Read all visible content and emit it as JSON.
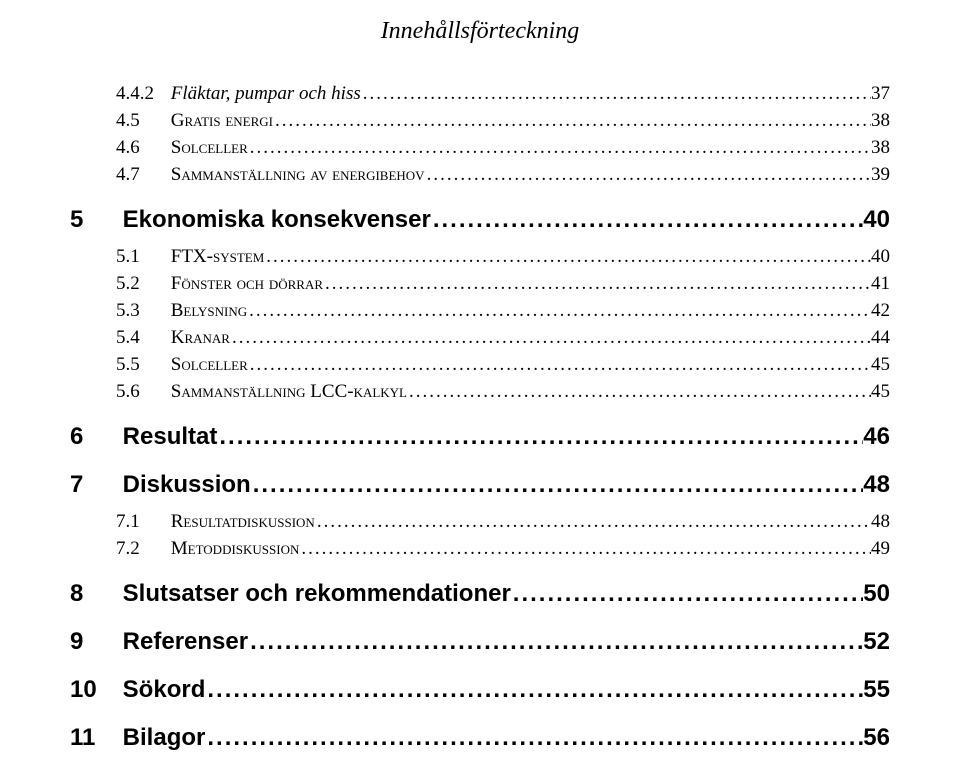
{
  "header": {
    "title": "Innehållsförteckning"
  },
  "leader_char": ".",
  "colors": {
    "background": "#ffffff",
    "text": "#000000"
  },
  "typography": {
    "header": {
      "family": "Georgia",
      "style": "italic",
      "size_pt": 18
    },
    "chapter": {
      "family": "Arial",
      "weight": "bold",
      "size_pt": 18
    },
    "sub": {
      "family": "Georgia",
      "size_pt": 14
    }
  },
  "toc": [
    {
      "level": "sub",
      "num": "4.4.2",
      "title": "Fläktar, pumpar och hiss",
      "style": "italic",
      "page": "37"
    },
    {
      "level": "sub-sc",
      "num": "4.5",
      "title": "Gratis energi",
      "page": "38"
    },
    {
      "level": "sub-sc",
      "num": "4.6",
      "title": "Solceller",
      "page": "38"
    },
    {
      "level": "sub-sc",
      "num": "4.7",
      "title": "Sammanställning av energibehov",
      "page": "39"
    },
    {
      "level": "chap",
      "num": "5",
      "title": "Ekonomiska konsekvenser",
      "page": "40"
    },
    {
      "level": "sub-sc",
      "num": "5.1",
      "title": "FTX-system",
      "page": "40"
    },
    {
      "level": "sub-sc",
      "num": "5.2",
      "title": "Fönster och dörrar",
      "page": "41"
    },
    {
      "level": "sub-sc",
      "num": "5.3",
      "title": "Belysning",
      "page": "42"
    },
    {
      "level": "sub-sc",
      "num": "5.4",
      "title": "Kranar",
      "page": "44"
    },
    {
      "level": "sub-sc",
      "num": "5.5",
      "title": "Solceller",
      "page": "45"
    },
    {
      "level": "sub-sc",
      "num": "5.6",
      "title": "Sammanställning LCC-kalkyl",
      "page": "45"
    },
    {
      "level": "chap",
      "num": "6",
      "title": "Resultat",
      "page": "46"
    },
    {
      "level": "chap",
      "num": "7",
      "title": "Diskussion",
      "page": "48"
    },
    {
      "level": "sub-sc",
      "num": "7.1",
      "title": "Resultatdiskussion",
      "page": "48"
    },
    {
      "level": "sub-sc",
      "num": "7.2",
      "title": "Metoddiskussion",
      "page": "49"
    },
    {
      "level": "chap",
      "num": "8",
      "title": "Slutsatser och rekommendationer",
      "page": "50"
    },
    {
      "level": "chap",
      "num": "9",
      "title": "Referenser",
      "page": "52"
    },
    {
      "level": "chap",
      "num": "10",
      "title": "Sökord",
      "page": "55"
    },
    {
      "level": "chap",
      "num": "11",
      "title": "Bilagor",
      "page": "56"
    }
  ]
}
